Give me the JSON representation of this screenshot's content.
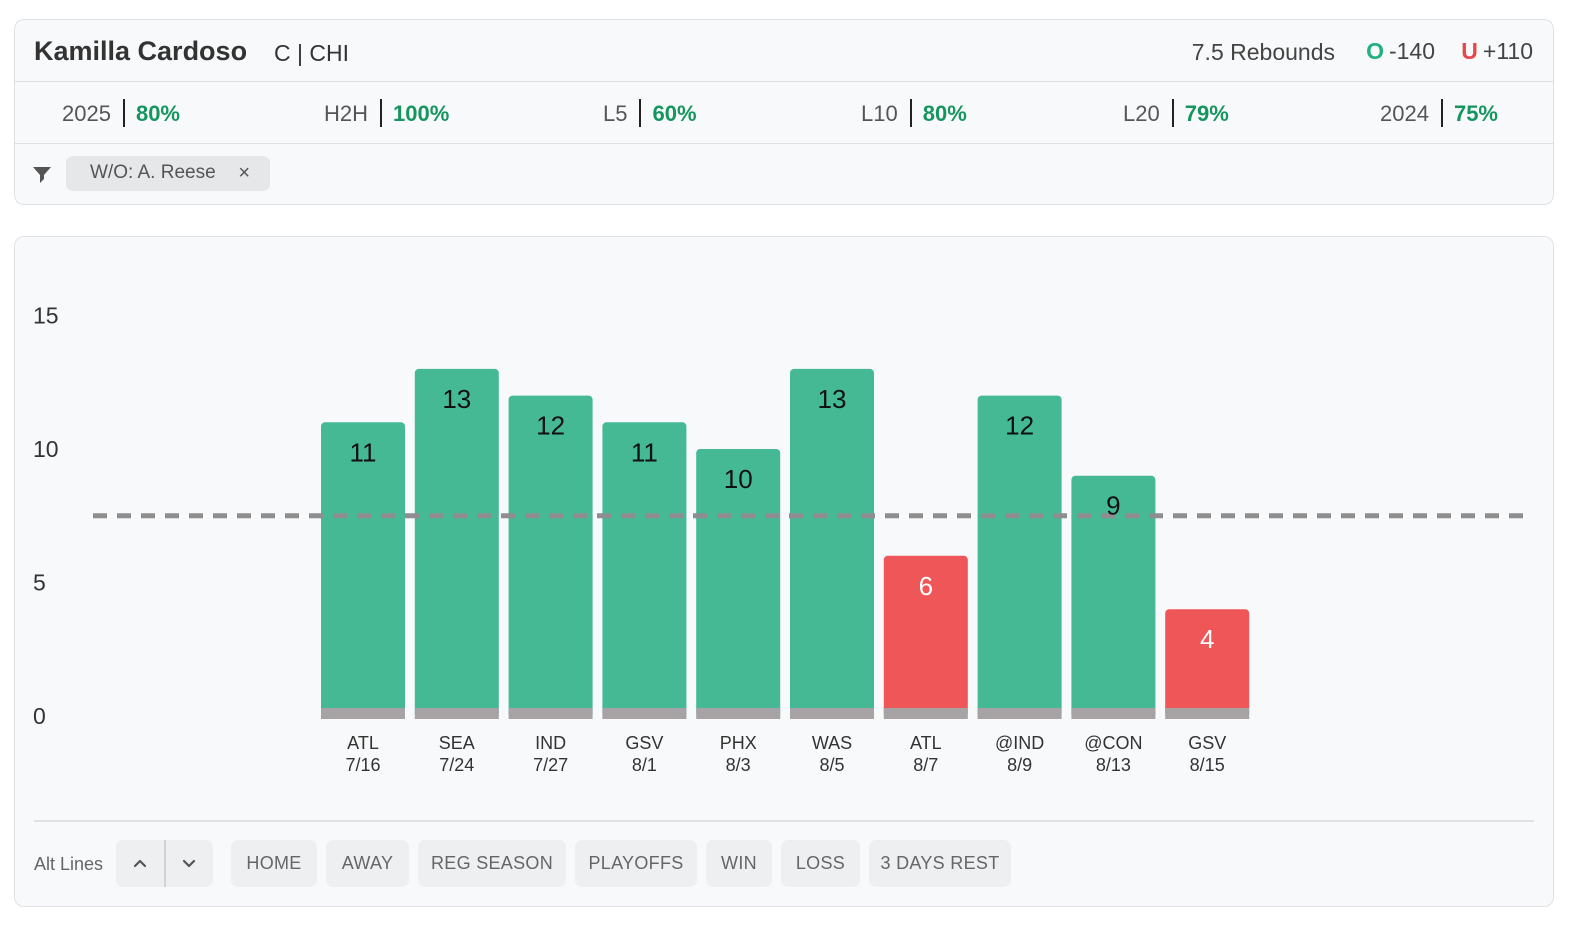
{
  "player": {
    "name": "Kamilla Cardoso",
    "meta": "C | CHI"
  },
  "prop": {
    "line_label": "7.5 Rebounds",
    "over_mark": "O",
    "over_odds": "-140",
    "under_mark": "U",
    "under_odds": "+110"
  },
  "stats": [
    {
      "label": "2025",
      "pct": "80%"
    },
    {
      "label": "H2H",
      "pct": "100%"
    },
    {
      "label": "L5",
      "pct": "60%"
    },
    {
      "label": "L10",
      "pct": "80%"
    },
    {
      "label": "L20",
      "pct": "79%"
    },
    {
      "label": "2024",
      "pct": "75%"
    }
  ],
  "filter": {
    "icon": "funnel-icon",
    "chip_label": "W/O: A. Reese",
    "chip_close": "×"
  },
  "colors": {
    "over": "#45b994",
    "under": "#ef5658",
    "base": "#a7a3a5",
    "line": "#8e8e8e",
    "pct": "#16955f"
  },
  "chart_data": {
    "type": "bar",
    "title": "",
    "xlabel": "",
    "ylabel": "",
    "ylim": [
      0,
      15
    ],
    "yticks": [
      0,
      5,
      10,
      15
    ],
    "grid": false,
    "threshold": 7.5,
    "categories": [
      {
        "opp": "ATL",
        "date": "7/16"
      },
      {
        "opp": "SEA",
        "date": "7/24"
      },
      {
        "opp": "IND",
        "date": "7/27"
      },
      {
        "opp": "GSV",
        "date": "8/1"
      },
      {
        "opp": "PHX",
        "date": "8/3"
      },
      {
        "opp": "WAS",
        "date": "8/5"
      },
      {
        "opp": "ATL",
        "date": "8/7"
      },
      {
        "opp": "@IND",
        "date": "8/9"
      },
      {
        "opp": "@CON",
        "date": "8/13"
      },
      {
        "opp": "GSV",
        "date": "8/15"
      }
    ],
    "values": [
      11,
      13,
      12,
      11,
      10,
      13,
      6,
      12,
      9,
      4
    ]
  },
  "controls": {
    "alt_lines_label": "Alt Lines",
    "up_icon": "chevron-up-icon",
    "down_icon": "chevron-down-icon",
    "filters": [
      "HOME",
      "AWAY",
      "REG SEASON",
      "PLAYOFFS",
      "WIN",
      "LOSS",
      "3 DAYS REST"
    ]
  }
}
